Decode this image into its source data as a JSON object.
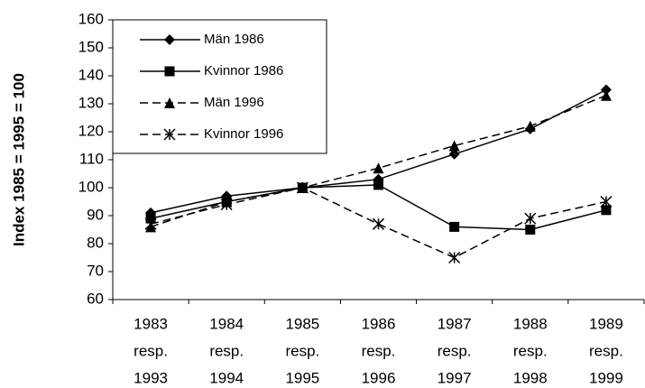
{
  "chart_data": {
    "type": "line",
    "ylabel": "Index 1985 = 1995 = 100",
    "categories": [
      [
        "1983",
        "resp.",
        "1993"
      ],
      [
        "1984",
        "resp.",
        "1994"
      ],
      [
        "1985",
        "resp.",
        "1995"
      ],
      [
        "1986",
        "resp.",
        "1996"
      ],
      [
        "1987",
        "resp.",
        "1997"
      ],
      [
        "1988",
        "resp.",
        "1998"
      ],
      [
        "1989",
        "resp.",
        "1999"
      ]
    ],
    "series": [
      {
        "name": "Män 1986",
        "color": "#000000",
        "line_style": "solid",
        "marker": "diamond",
        "values": [
          91,
          97,
          100,
          103,
          112,
          121,
          135
        ]
      },
      {
        "name": "Kvinnor 1986",
        "color": "#000000",
        "line_style": "solid",
        "marker": "square",
        "values": [
          89,
          95,
          100,
          101,
          86,
          85,
          92
        ]
      },
      {
        "name": "Män 1996",
        "color": "#000000",
        "line_style": "dashed",
        "marker": "triangle",
        "values": [
          86,
          95,
          100,
          107,
          115,
          122,
          133
        ]
      },
      {
        "name": "Kvinnor 1996",
        "color": "#000000",
        "line_style": "dashed",
        "marker": "star",
        "values": [
          87,
          94,
          100,
          87,
          75,
          89,
          95
        ]
      }
    ],
    "ylim": [
      60,
      160
    ],
    "yticks": [
      60,
      70,
      80,
      90,
      100,
      110,
      120,
      130,
      140,
      150,
      160
    ],
    "grid": false,
    "legend": "upper left"
  }
}
